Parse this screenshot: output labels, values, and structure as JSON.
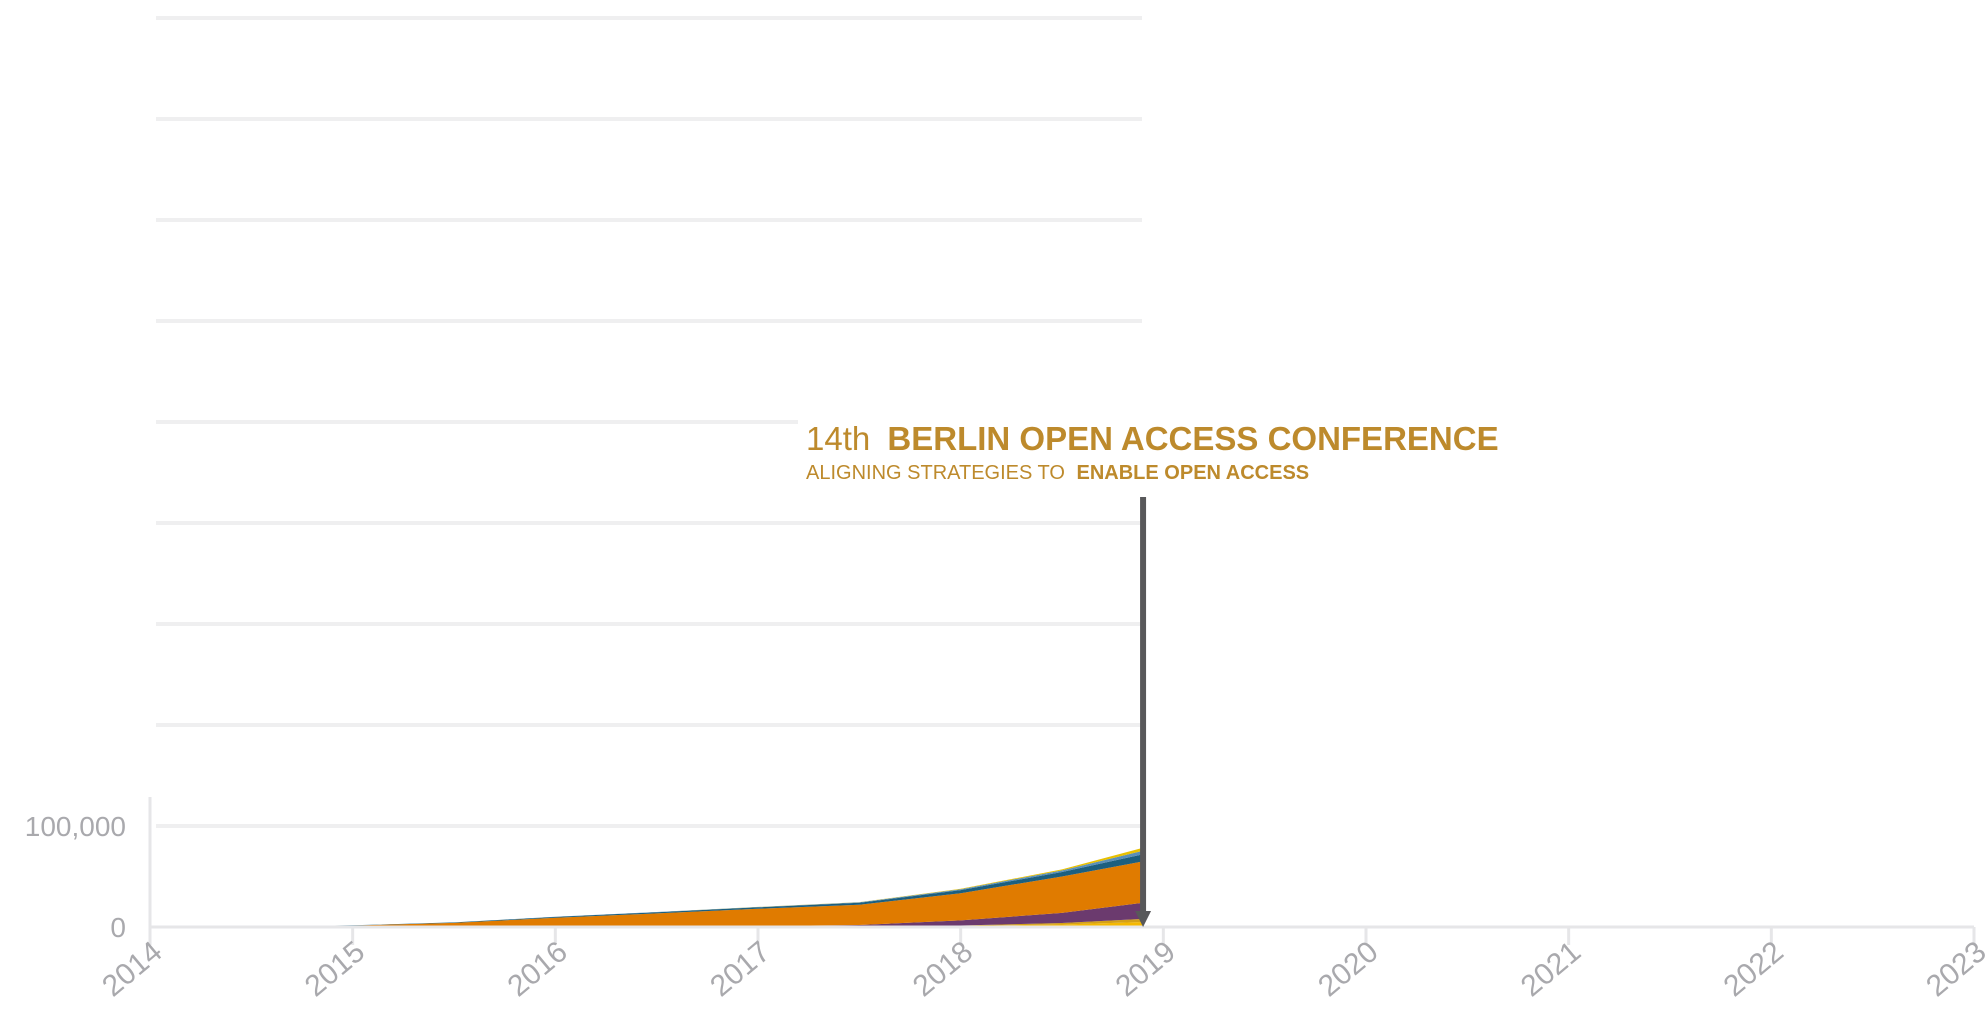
{
  "chart_data": {
    "type": "area",
    "x": [
      2014,
      2014.5,
      2015,
      2015.5,
      2016,
      2016.5,
      2017,
      2017.5,
      2018,
      2018.5,
      2018.9
    ],
    "series": [
      {
        "values": [
          0,
          0,
          0,
          0,
          0,
          0,
          0,
          0,
          1000,
          2500,
          5000
        ]
      },
      {
        "values": [
          0,
          0,
          0,
          0,
          0,
          0,
          0,
          0,
          500,
          1500,
          3000
        ]
      },
      {
        "values": [
          0,
          0,
          0,
          100,
          200,
          500,
          1000,
          2000,
          5000,
          10000,
          16000
        ]
      },
      {
        "values": [
          0,
          300,
          1500,
          4000,
          9000,
          13000,
          17000,
          20000,
          27000,
          36000,
          41000
        ]
      },
      {
        "values": [
          0,
          50,
          200,
          500,
          800,
          1200,
          1500,
          2000,
          3000,
          4500,
          7000
        ]
      },
      {
        "values": [
          0,
          0,
          0,
          0,
          100,
          200,
          300,
          500,
          800,
          1500,
          3500
        ]
      },
      {
        "values": [
          0,
          0,
          0,
          0,
          0,
          0,
          100,
          200,
          500,
          1000,
          3000
        ]
      }
    ],
    "colors": [
      "#f5b800",
      "#d4a017",
      "#6b3a6e",
      "#e07b00",
      "#1c5f7f",
      "#5a8fb8",
      "#e8c000"
    ],
    "y_ticks": [
      {
        "value": 0,
        "label": "0"
      },
      {
        "value": 100000,
        "label": "100,000"
      }
    ],
    "y_gridlines": [
      0,
      100000,
      200000,
      300000,
      400000,
      500000,
      600000,
      700000,
      800000,
      900000
    ],
    "x_ticks": [
      "2014",
      "2015",
      "2016",
      "2017",
      "2018",
      "2019",
      "2020",
      "2021",
      "2022",
      "2023"
    ],
    "xlim": [
      2014,
      2023
    ],
    "ylim": [
      0,
      900000
    ],
    "grid": true,
    "annotation": {
      "x": 2018.9,
      "title_prefix": "14th",
      "title_bold": "BERLIN OPEN ACCESS CONFERENCE",
      "subtitle_prefix": "ALIGNING STRATEGIES TO",
      "subtitle_bold": "ENABLE OPEN ACCESS",
      "color": "#bd8a2c",
      "marker_color": "#58585a"
    }
  }
}
